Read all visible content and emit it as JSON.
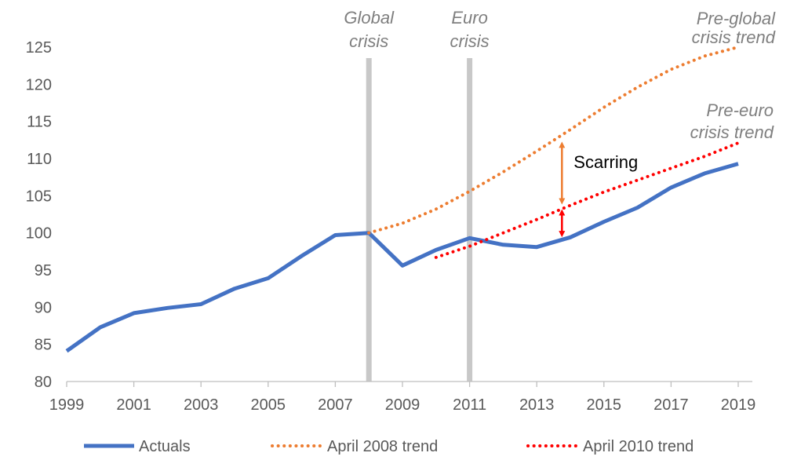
{
  "chart_data": {
    "type": "line",
    "title": "",
    "xlabel": "",
    "ylabel": "",
    "xlim": [
      1999,
      2019
    ],
    "ylim": [
      80,
      125
    ],
    "x_ticks": [
      "1999",
      "2001",
      "2003",
      "2005",
      "2007",
      "2009",
      "2011",
      "2013",
      "2015",
      "2017",
      "2019"
    ],
    "y_ticks": [
      "80",
      "85",
      "90",
      "95",
      "100",
      "105",
      "110",
      "115",
      "120",
      "125"
    ],
    "grid": false,
    "legend_position": "bottom",
    "series": [
      {
        "name": "Actuals",
        "color": "#4472C4",
        "style": "solid",
        "x": [
          1999,
          2000,
          2001,
          2002,
          2003,
          2004,
          2005,
          2006,
          2007,
          2008,
          2009,
          2010,
          2011,
          2012,
          2013,
          2014,
          2015,
          2016,
          2017,
          2018,
          2019
        ],
        "values": [
          84.1,
          87.3,
          89.2,
          89.9,
          90.4,
          92.5,
          93.9,
          96.9,
          99.7,
          100.0,
          95.6,
          97.7,
          99.3,
          98.4,
          98.1,
          99.4,
          101.5,
          103.4,
          106.1,
          108.0,
          109.3
        ]
      },
      {
        "name": "April 2008 trend",
        "color": "#ED7D31",
        "style": "dotted",
        "x": [
          2008,
          2009,
          2010,
          2011,
          2012,
          2013,
          2014,
          2015,
          2016,
          2017,
          2018,
          2019
        ],
        "values": [
          100.0,
          101.3,
          103.2,
          105.6,
          108.2,
          111.0,
          113.9,
          116.9,
          119.6,
          122.0,
          123.8,
          125.0
        ]
      },
      {
        "name": "April 2010 trend",
        "color": "#FF0000",
        "style": "dotted",
        "x": [
          2010,
          2011,
          2012,
          2013,
          2014,
          2015,
          2016,
          2017,
          2018,
          2019
        ],
        "values": [
          96.7,
          98.2,
          100.0,
          101.8,
          103.7,
          105.5,
          107.1,
          108.7,
          110.3,
          112.1
        ]
      }
    ],
    "vertical_markers": [
      {
        "x": 2008,
        "label_lines": [
          "Global",
          "crisis"
        ]
      },
      {
        "x": 2011,
        "label_lines": [
          "Euro",
          "crisis"
        ]
      }
    ],
    "annotations": {
      "pre_global": {
        "lines": [
          "Pre-global",
          "crisis trend"
        ],
        "x": 2019
      },
      "pre_euro": {
        "lines": [
          "Pre-euro",
          "crisis trend"
        ],
        "x": 2019
      },
      "scarring": {
        "text": "Scarring",
        "x": 2013.75,
        "orange_from": 103.5,
        "orange_to": 112.6,
        "red_from": 99.1,
        "red_to": 103.5,
        "orange_color": "#ED7D31",
        "red_color": "#FF0000"
      }
    }
  }
}
